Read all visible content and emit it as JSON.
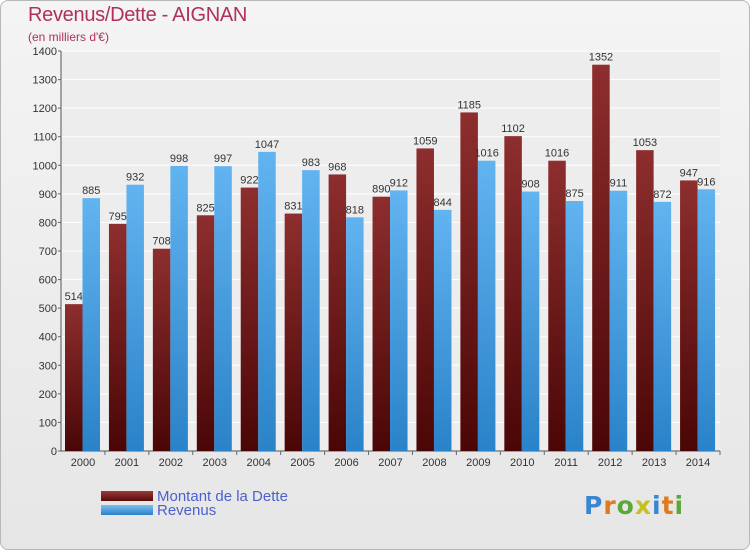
{
  "title": "Revenus/Dette - AIGNAN",
  "subtitle": "(en milliers d'€)",
  "logo_text": "Proxiti",
  "legend": [
    {
      "label": "Montant de la Dette",
      "color": "#6b1010"
    },
    {
      "label": "Revenus",
      "color": "#4aa0e0"
    }
  ],
  "chart_data": {
    "type": "bar",
    "categories": [
      "2000",
      "2001",
      "2002",
      "2003",
      "2004",
      "2005",
      "2006",
      "2007",
      "2008",
      "2009",
      "2010",
      "2011",
      "2012",
      "2013",
      "2014"
    ],
    "series": [
      {
        "name": "Montant de la Dette",
        "values": [
          514,
          795,
          708,
          825,
          922,
          831,
          968,
          890,
          1059,
          1185,
          1102,
          1016,
          1352,
          1053,
          947
        ]
      },
      {
        "name": "Revenus",
        "values": [
          885,
          932,
          998,
          997,
          1047,
          983,
          818,
          912,
          844,
          1016,
          908,
          875,
          911,
          872,
          916
        ]
      }
    ],
    "ylim": [
      0,
      1400
    ],
    "yticks": [
      0,
      100,
      200,
      300,
      400,
      500,
      600,
      700,
      800,
      900,
      1000,
      1100,
      1200,
      1300,
      1400
    ],
    "grid": true,
    "legend_position": "bottom-left"
  }
}
